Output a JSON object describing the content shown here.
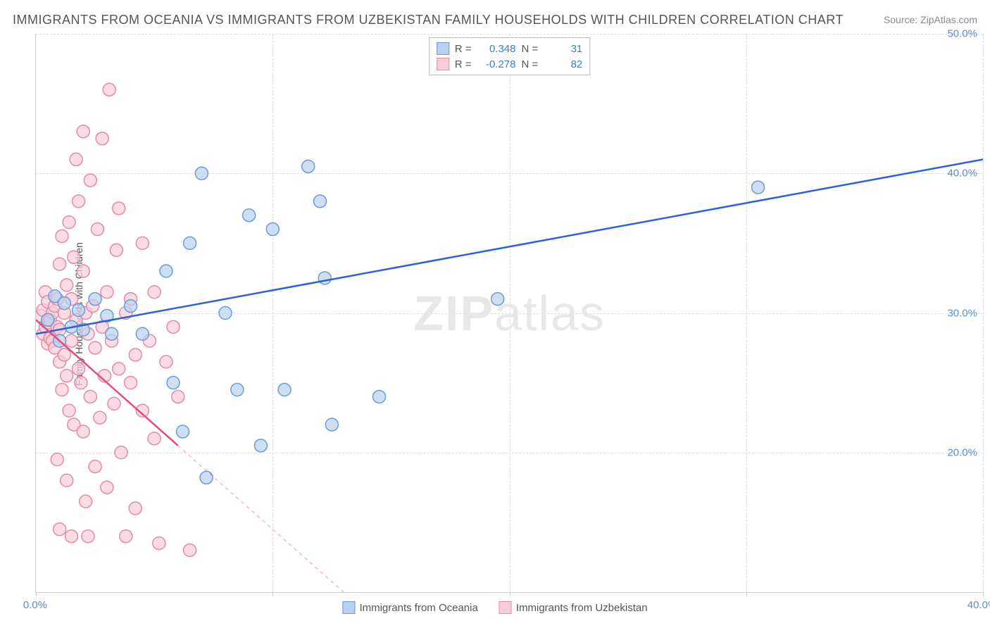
{
  "title": "IMMIGRANTS FROM OCEANIA VS IMMIGRANTS FROM UZBEKISTAN FAMILY HOUSEHOLDS WITH CHILDREN CORRELATION CHART",
  "source_label": "Source: ",
  "source_value": "ZipAtlas.com",
  "y_axis_label": "Family Households with Children",
  "watermark": "ZIPatlas",
  "chart": {
    "type": "scatter",
    "x_min": 0.0,
    "x_max": 40.0,
    "y_min": 10.0,
    "y_max": 50.0,
    "x_ticks": [
      0.0,
      10.0,
      20.0,
      30.0,
      40.0
    ],
    "x_tick_labels": [
      "0.0%",
      "",
      "",
      "",
      "40.0%"
    ],
    "y_ticks": [
      20.0,
      30.0,
      40.0,
      50.0
    ],
    "y_tick_labels": [
      "20.0%",
      "30.0%",
      "40.0%",
      "50.0%"
    ],
    "grid_color": "#dddddd",
    "axis_color": "#cccccc",
    "background_color": "#ffffff",
    "series": [
      {
        "name": "Immigrants from Oceania",
        "color_fill": "#b9d1f0",
        "color_stroke": "#6a9bd8",
        "trend_color": "#2962d9",
        "R": "0.348",
        "N": "31",
        "trend": {
          "x1": 0,
          "y1": 28.5,
          "x2": 40,
          "y2": 41.0,
          "solid_until_x": 40
        },
        "points": [
          [
            0.5,
            29.5
          ],
          [
            0.8,
            31.2
          ],
          [
            1.0,
            28.0
          ],
          [
            1.2,
            30.7
          ],
          [
            1.5,
            29.0
          ],
          [
            1.8,
            30.2
          ],
          [
            2.0,
            28.8
          ],
          [
            2.5,
            31.0
          ],
          [
            3.0,
            29.8
          ],
          [
            3.2,
            28.5
          ],
          [
            4.0,
            30.5
          ],
          [
            4.5,
            28.5
          ],
          [
            5.5,
            33.0
          ],
          [
            5.8,
            25.0
          ],
          [
            6.2,
            21.5
          ],
          [
            6.5,
            35.0
          ],
          [
            7.0,
            40.0
          ],
          [
            7.2,
            18.2
          ],
          [
            8.0,
            30.0
          ],
          [
            8.5,
            24.5
          ],
          [
            9.0,
            37.0
          ],
          [
            9.5,
            20.5
          ],
          [
            10.0,
            36.0
          ],
          [
            10.5,
            24.5
          ],
          [
            11.5,
            40.5
          ],
          [
            12.0,
            38.0
          ],
          [
            12.2,
            32.5
          ],
          [
            12.5,
            22.0
          ],
          [
            14.5,
            24.0
          ],
          [
            19.5,
            31.0
          ],
          [
            30.5,
            39.0
          ]
        ]
      },
      {
        "name": "Immigrants from Uzbekistan",
        "color_fill": "#f7cdd8",
        "color_stroke": "#e68aa5",
        "trend_color": "#e54b7a",
        "R": "-0.278",
        "N": "82",
        "trend": {
          "x1": 0,
          "y1": 29.5,
          "x2": 13,
          "y2": 10.0,
          "solid_until_x": 6
        },
        "points": [
          [
            0.2,
            29.8
          ],
          [
            0.3,
            30.2
          ],
          [
            0.3,
            28.5
          ],
          [
            0.4,
            29.0
          ],
          [
            0.4,
            31.5
          ],
          [
            0.5,
            29.3
          ],
          [
            0.5,
            27.8
          ],
          [
            0.5,
            30.8
          ],
          [
            0.6,
            28.2
          ],
          [
            0.6,
            29.5
          ],
          [
            0.7,
            30.0
          ],
          [
            0.7,
            28.0
          ],
          [
            0.8,
            30.5
          ],
          [
            0.8,
            27.5
          ],
          [
            0.9,
            29.0
          ],
          [
            0.9,
            31.0
          ],
          [
            1.0,
            33.5
          ],
          [
            1.0,
            26.5
          ],
          [
            1.0,
            28.8
          ],
          [
            1.1,
            35.5
          ],
          [
            1.1,
            24.5
          ],
          [
            1.2,
            30.0
          ],
          [
            1.2,
            27.0
          ],
          [
            1.3,
            32.0
          ],
          [
            1.3,
            25.5
          ],
          [
            1.4,
            36.5
          ],
          [
            1.4,
            23.0
          ],
          [
            1.5,
            28.0
          ],
          [
            1.5,
            31.0
          ],
          [
            1.6,
            34.0
          ],
          [
            1.6,
            22.0
          ],
          [
            1.7,
            29.5
          ],
          [
            1.8,
            38.0
          ],
          [
            1.8,
            26.0
          ],
          [
            1.9,
            25.0
          ],
          [
            2.0,
            33.0
          ],
          [
            2.0,
            21.5
          ],
          [
            2.1,
            30.0
          ],
          [
            2.1,
            16.5
          ],
          [
            2.2,
            14.0
          ],
          [
            2.2,
            28.5
          ],
          [
            2.3,
            39.5
          ],
          [
            2.3,
            24.0
          ],
          [
            2.4,
            30.5
          ],
          [
            2.5,
            27.5
          ],
          [
            2.5,
            19.0
          ],
          [
            2.6,
            36.0
          ],
          [
            2.7,
            22.5
          ],
          [
            2.8,
            29.0
          ],
          [
            2.8,
            42.5
          ],
          [
            2.9,
            25.5
          ],
          [
            3.0,
            31.5
          ],
          [
            3.0,
            17.5
          ],
          [
            3.1,
            46.0
          ],
          [
            3.2,
            28.0
          ],
          [
            3.3,
            23.5
          ],
          [
            3.4,
            34.5
          ],
          [
            3.5,
            26.0
          ],
          [
            3.5,
            37.5
          ],
          [
            3.6,
            20.0
          ],
          [
            3.8,
            30.0
          ],
          [
            3.8,
            14.0
          ],
          [
            4.0,
            25.0
          ],
          [
            4.0,
            31.0
          ],
          [
            4.2,
            27.0
          ],
          [
            4.2,
            16.0
          ],
          [
            4.5,
            35.0
          ],
          [
            4.5,
            23.0
          ],
          [
            4.8,
            28.0
          ],
          [
            5.0,
            31.5
          ],
          [
            5.0,
            21.0
          ],
          [
            5.2,
            13.5
          ],
          [
            5.5,
            26.5
          ],
          [
            5.8,
            29.0
          ],
          [
            6.0,
            24.0
          ],
          [
            6.5,
            13.0
          ],
          [
            1.0,
            14.5
          ],
          [
            1.5,
            14.0
          ],
          [
            0.9,
            19.5
          ],
          [
            1.3,
            18.0
          ],
          [
            2.0,
            43.0
          ],
          [
            1.7,
            41.0
          ]
        ]
      }
    ]
  }
}
